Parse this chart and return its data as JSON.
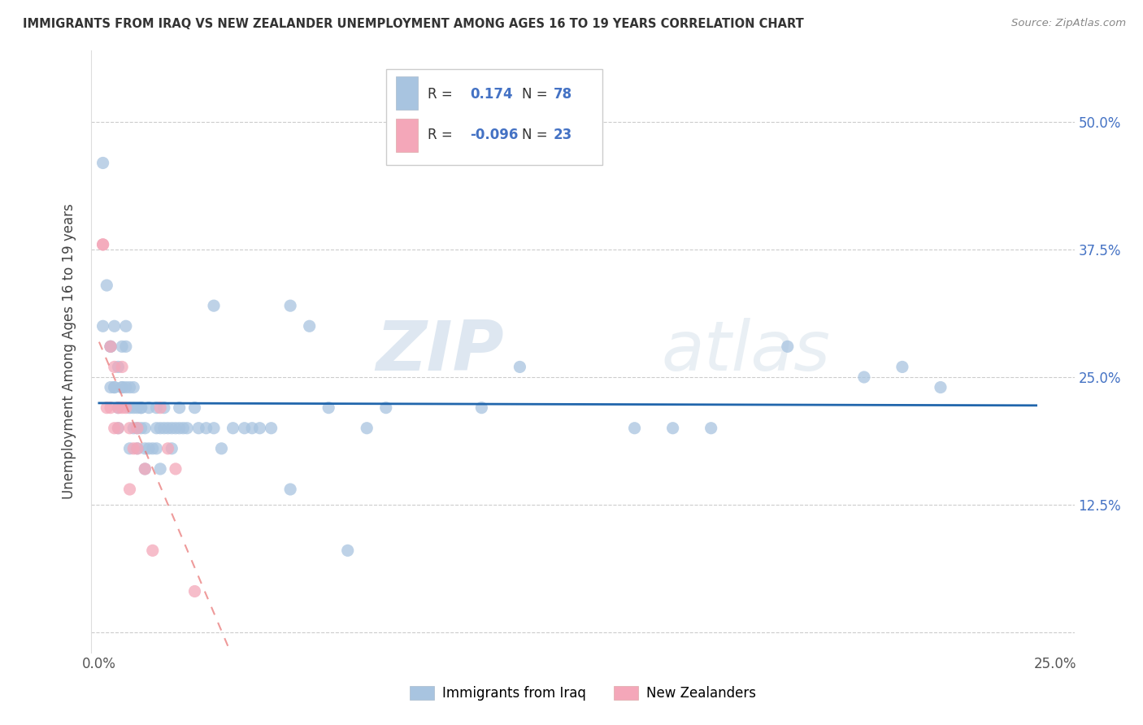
{
  "title": "IMMIGRANTS FROM IRAQ VS NEW ZEALANDER UNEMPLOYMENT AMONG AGES 16 TO 19 YEARS CORRELATION CHART",
  "source": "Source: ZipAtlas.com",
  "ylabel": "Unemployment Among Ages 16 to 19 years",
  "xlim": [
    -0.002,
    0.255
  ],
  "ylim": [
    -0.02,
    0.57
  ],
  "x_ticks": [
    0.0,
    0.05,
    0.1,
    0.15,
    0.2,
    0.25
  ],
  "x_tick_labels": [
    "0.0%",
    "",
    "",
    "",
    "",
    "25.0%"
  ],
  "y_ticks": [
    0.0,
    0.125,
    0.25,
    0.375,
    0.5
  ],
  "y_tick_labels": [
    "",
    "12.5%",
    "25.0%",
    "37.5%",
    "50.0%"
  ],
  "blue_R": 0.174,
  "blue_N": 78,
  "pink_R": -0.096,
  "pink_N": 23,
  "blue_color": "#a8c4e0",
  "pink_color": "#f4a7b9",
  "blue_line_color": "#2166ac",
  "pink_line_color": "#e87070",
  "watermark_zip": "ZIP",
  "watermark_atlas": "atlas",
  "legend_label_blue": "Immigrants from Iraq",
  "legend_label_pink": "New Zealanders",
  "blue_x": [
    0.001,
    0.002,
    0.003,
    0.003,
    0.004,
    0.004,
    0.005,
    0.005,
    0.006,
    0.006,
    0.007,
    0.007,
    0.008,
    0.008,
    0.009,
    0.009,
    0.01,
    0.01,
    0.011,
    0.011,
    0.012,
    0.012,
    0.013,
    0.014,
    0.015,
    0.015,
    0.016,
    0.017,
    0.018,
    0.019,
    0.02,
    0.021,
    0.022,
    0.023,
    0.025,
    0.026,
    0.028,
    0.03,
    0.032,
    0.035,
    0.038,
    0.04,
    0.042,
    0.045,
    0.05,
    0.055,
    0.06,
    0.065,
    0.07,
    0.075,
    0.003,
    0.005,
    0.007,
    0.009,
    0.011,
    0.013,
    0.015,
    0.017,
    0.019,
    0.021,
    0.001,
    0.004,
    0.006,
    0.008,
    0.01,
    0.012,
    0.11,
    0.15,
    0.18,
    0.2,
    0.016,
    0.03,
    0.05,
    0.1,
    0.14,
    0.16,
    0.22,
    0.21
  ],
  "blue_y": [
    0.3,
    0.34,
    0.28,
    0.24,
    0.3,
    0.24,
    0.22,
    0.2,
    0.28,
    0.24,
    0.3,
    0.24,
    0.24,
    0.22,
    0.22,
    0.2,
    0.22,
    0.2,
    0.2,
    0.22,
    0.2,
    0.18,
    0.22,
    0.18,
    0.2,
    0.22,
    0.2,
    0.22,
    0.2,
    0.2,
    0.2,
    0.2,
    0.2,
    0.2,
    0.22,
    0.2,
    0.2,
    0.2,
    0.18,
    0.2,
    0.2,
    0.2,
    0.2,
    0.2,
    0.32,
    0.3,
    0.22,
    0.08,
    0.2,
    0.22,
    0.28,
    0.26,
    0.28,
    0.24,
    0.22,
    0.18,
    0.18,
    0.2,
    0.18,
    0.22,
    0.46,
    0.24,
    0.24,
    0.18,
    0.18,
    0.16,
    0.26,
    0.2,
    0.28,
    0.25,
    0.16,
    0.32,
    0.14,
    0.22,
    0.2,
    0.2,
    0.24,
    0.26
  ],
  "pink_x": [
    0.001,
    0.001,
    0.002,
    0.003,
    0.003,
    0.004,
    0.004,
    0.005,
    0.005,
    0.006,
    0.006,
    0.007,
    0.008,
    0.009,
    0.01,
    0.01,
    0.012,
    0.014,
    0.016,
    0.018,
    0.02,
    0.025,
    0.008
  ],
  "pink_y": [
    0.38,
    0.38,
    0.22,
    0.28,
    0.22,
    0.26,
    0.2,
    0.22,
    0.2,
    0.26,
    0.22,
    0.22,
    0.2,
    0.18,
    0.2,
    0.18,
    0.16,
    0.08,
    0.22,
    0.18,
    0.16,
    0.04,
    0.14
  ]
}
